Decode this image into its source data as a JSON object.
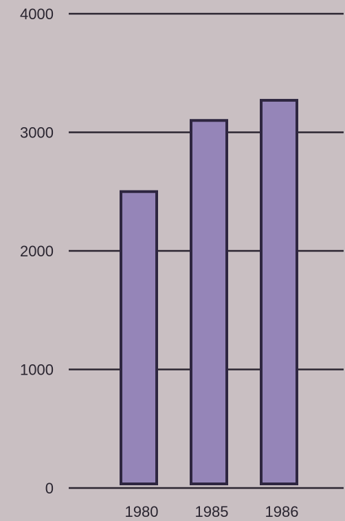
{
  "chart_data": {
    "type": "bar",
    "title": "",
    "xlabel": "",
    "ylabel": "",
    "categories": [
      "1980",
      "1985",
      "1986"
    ],
    "values": [
      2500,
      3100,
      3270
    ],
    "ylim": [
      0,
      4000
    ],
    "yticks": [
      "0",
      "1000",
      "2000",
      "3000",
      "4000"
    ],
    "grid": true,
    "colors": {
      "bar": "#9585b8",
      "bar_outline": "#2e2640",
      "background": "#c9bfc2",
      "grid": "#2b2530"
    }
  }
}
